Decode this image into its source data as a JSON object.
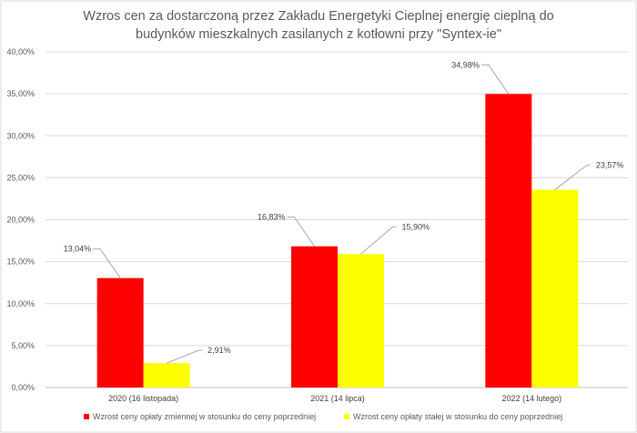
{
  "chart_data": {
    "type": "bar",
    "title_lines": [
      "Wzros cen za dostarczoną przez Zakładu Energetyki Cieplnej energię cieplną do",
      "budynków mieszkalnych zasilanych z kotłowni przy \"Syntex-ie\""
    ],
    "categories": [
      "2020 (16 listopada)",
      "2021 (14 lipca)",
      "2022 (14 lutego)"
    ],
    "series": [
      {
        "name": "Wzrost ceny opłaty zmiennej w stosunku do ceny poprzedniej",
        "color": "#ff0000",
        "values": [
          13.04,
          16.83,
          34.98
        ],
        "labels": [
          "13,04%",
          "16,83%",
          "34,98%"
        ]
      },
      {
        "name": "Wzrost ceny opłaty stałej w stosunku do ceny poprzedniej",
        "color": "#ffff00",
        "values": [
          2.91,
          15.9,
          23.57
        ],
        "labels": [
          "2,91%",
          "15,90%",
          "23,57%"
        ]
      }
    ],
    "yticks": [
      "0,00%",
      "5,00%",
      "10,00%",
      "15,00%",
      "20,00%",
      "25,00%",
      "30,00%",
      "35,00%",
      "40,00%"
    ],
    "ylim": [
      0,
      40
    ],
    "ystep": 5,
    "grid": true,
    "legend_position": "bottom"
  }
}
